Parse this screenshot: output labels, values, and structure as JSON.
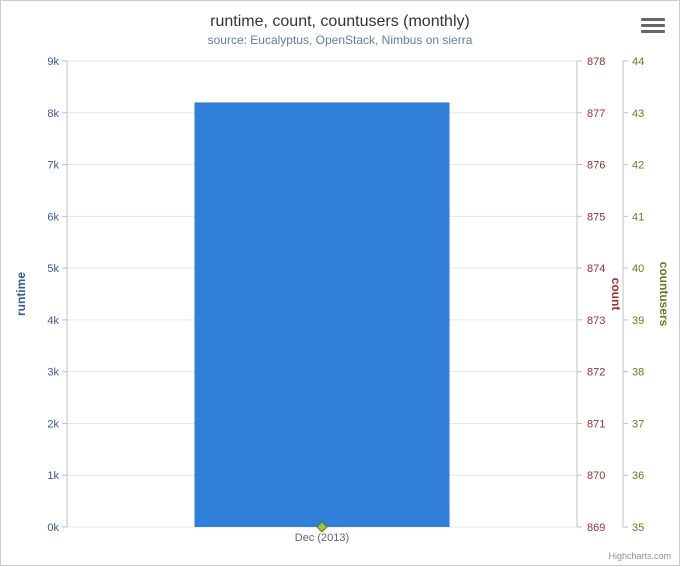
{
  "chart": {
    "type": "bar",
    "title": "runtime, count, countusers (monthly)",
    "subtitle": "source: Eucalyptus, OpenStack, Nimbus on sierra",
    "credit": "Highcharts.com",
    "background_color": "#ffffff",
    "grid_color": "#e6e6e6",
    "title_fontsize": 16,
    "subtitle_fontsize": 12,
    "tick_fontsize": 11,
    "bar_color": "#2f7ed8",
    "marker_color": "#a0c040",
    "marker_stroke": "#608020",
    "xaxis": {
      "categories": [
        "Dec (2013)"
      ]
    },
    "yaxes": [
      {
        "title": "runtime",
        "color": "#3b5998",
        "min": 0,
        "max": 9000,
        "tick_step": 1000,
        "ticks": [
          "0k",
          "1k",
          "2k",
          "3k",
          "4k",
          "5k",
          "6k",
          "7k",
          "8k",
          "9k"
        ],
        "side": "left"
      },
      {
        "title": "count",
        "color": "#a03030",
        "min": 869,
        "max": 878,
        "tick_step": 1,
        "ticks": [
          "869",
          "870",
          "871",
          "872",
          "873",
          "874",
          "875",
          "876",
          "877",
          "878"
        ],
        "side": "right"
      },
      {
        "title": "countusers",
        "color": "#608020",
        "min": 35,
        "max": 44,
        "tick_step": 1,
        "ticks": [
          "35",
          "36",
          "37",
          "38",
          "39",
          "40",
          "41",
          "42",
          "43",
          "44"
        ],
        "side": "right2"
      }
    ],
    "series": [
      {
        "name": "runtime",
        "data": [
          8200
        ],
        "axis": 0
      }
    ]
  }
}
